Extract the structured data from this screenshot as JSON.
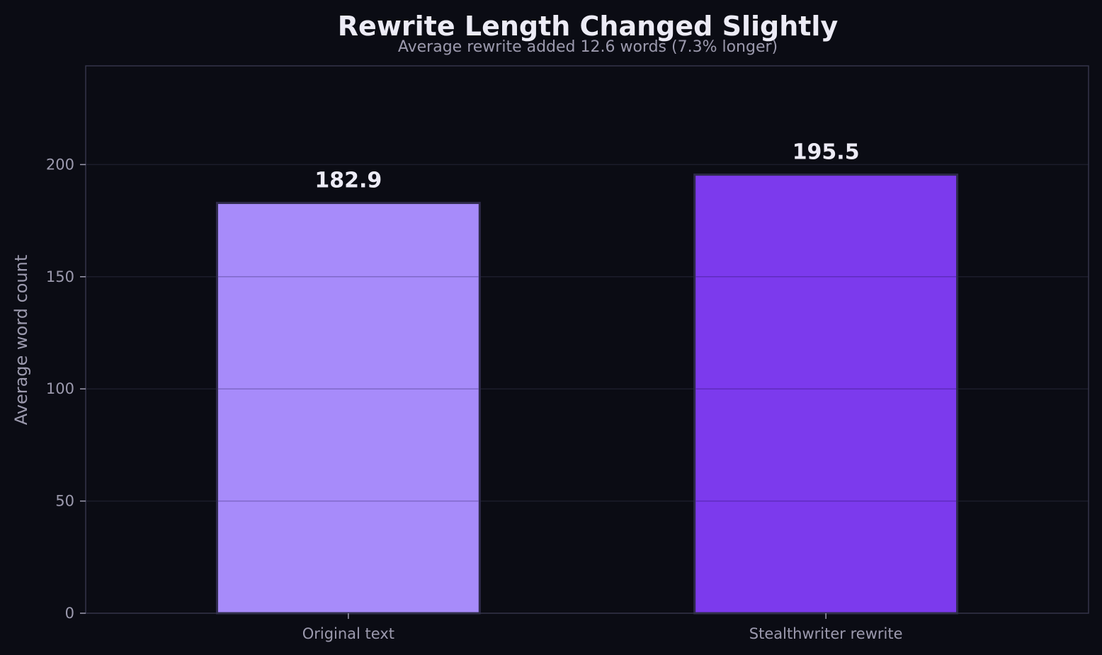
{
  "chart_data": {
    "type": "bar",
    "title": "Rewrite Length Changed Slightly",
    "subtitle": "Average rewrite added 12.6 words (7.3% longer)",
    "xlabel": "",
    "ylabel": "Average word count",
    "categories": [
      "Original text",
      "Stealthwriter rewrite"
    ],
    "values": [
      182.9,
      195.5
    ],
    "value_labels": [
      "182.9",
      "195.5"
    ],
    "colors": [
      "#a78bfa",
      "#7c3aed"
    ],
    "ylim": [
      0,
      244
    ],
    "yticks": [
      0,
      50,
      100,
      150,
      200
    ],
    "ytick_labels": [
      "0",
      "50",
      "100",
      "150",
      "200"
    ],
    "grid": true,
    "legend": "none"
  }
}
